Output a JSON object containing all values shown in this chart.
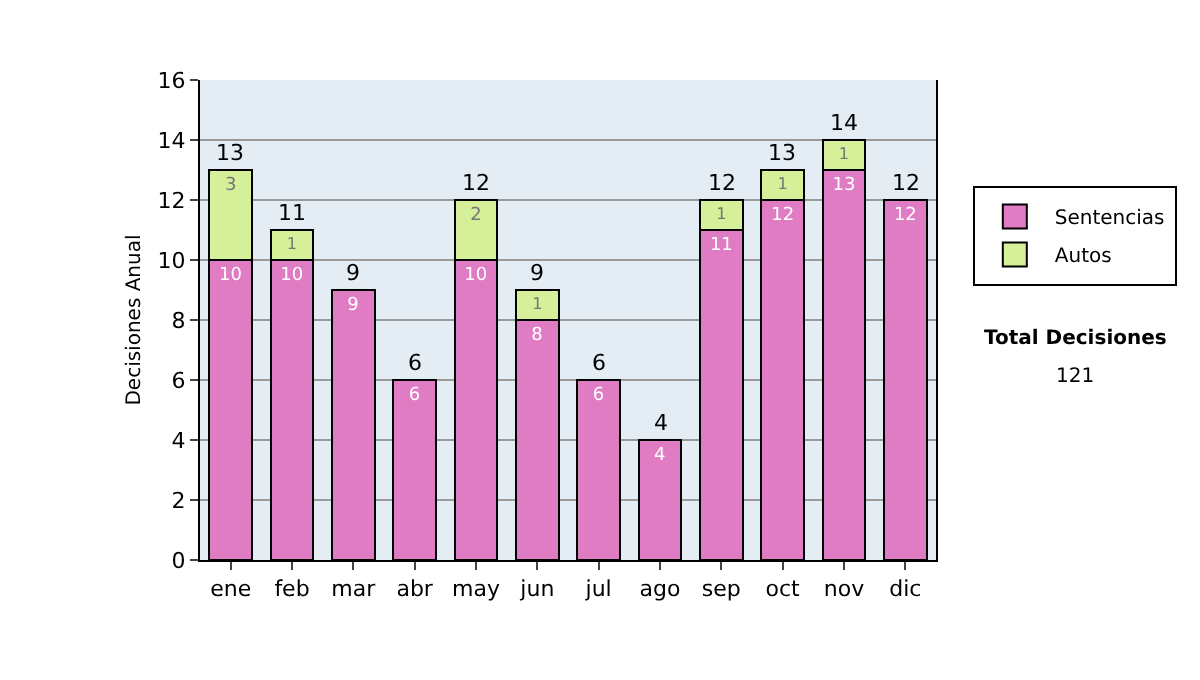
{
  "chart_data": {
    "type": "bar",
    "stacked": true,
    "ylabel": "Decisiones Anual",
    "categories": [
      "ene",
      "feb",
      "mar",
      "abr",
      "may",
      "jun",
      "jul",
      "ago",
      "sep",
      "oct",
      "nov",
      "dic"
    ],
    "series": [
      {
        "name": "Sentencias",
        "color": "#e07cc4",
        "values": [
          10,
          10,
          9,
          6,
          10,
          8,
          6,
          4,
          11,
          12,
          13,
          12
        ]
      },
      {
        "name": "Autos",
        "color": "#d6f09a",
        "values": [
          3,
          1,
          null,
          null,
          2,
          1,
          null,
          null,
          1,
          1,
          1,
          null
        ]
      }
    ],
    "totals": [
      "13",
      "11",
      "9",
      "6",
      "12",
      "9",
      "6",
      "4",
      "12",
      "13",
      "14",
      "12"
    ],
    "data_labels": true,
    "ylim": [
      0,
      16
    ],
    "yticks": [
      0,
      2,
      4,
      6,
      8,
      10,
      12,
      14,
      16
    ],
    "grid": "y",
    "legend": "right",
    "annotations": [
      "Total Decisiones",
      "121"
    ]
  }
}
